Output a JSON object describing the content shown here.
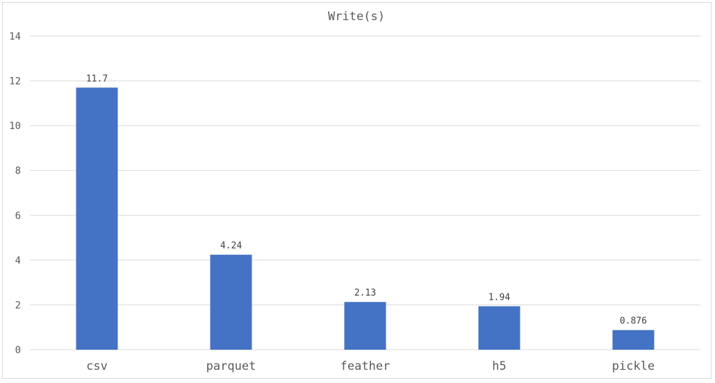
{
  "chart_data": {
    "type": "bar",
    "title": "Write(s)",
    "xlabel": "",
    "ylabel": "",
    "categories": [
      "csv",
      "parquet",
      "feather",
      "h5",
      "pickle"
    ],
    "values": [
      11.7,
      4.24,
      2.13,
      1.94,
      0.876
    ],
    "data_labels": [
      "11.7",
      "4.24",
      "2.13",
      "1.94",
      "0.876"
    ],
    "ylim": [
      0,
      14
    ],
    "yticks": [
      0,
      2,
      4,
      6,
      8,
      10,
      12,
      14
    ],
    "grid": true,
    "legend": "none",
    "bar_color": "#4472C4"
  }
}
